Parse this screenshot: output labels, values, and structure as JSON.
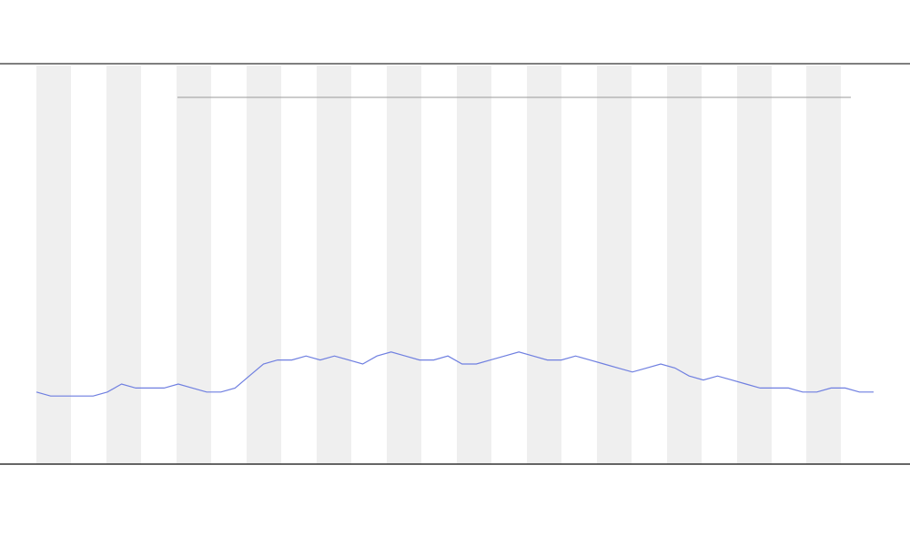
{
  "chart_data": {
    "type": "line",
    "series": [
      {
        "color": "#6f7fe0",
        "values": [
          18,
          17,
          17,
          17,
          17,
          18,
          20,
          19,
          19,
          19,
          20,
          19,
          18,
          18,
          19,
          22,
          25,
          26,
          26,
          27,
          26,
          27,
          26,
          25,
          27,
          28,
          27,
          26,
          26,
          27,
          25,
          25,
          26,
          27,
          28,
          27,
          26,
          26,
          27,
          26,
          25,
          24,
          23,
          24,
          25,
          24,
          22,
          21,
          22,
          21,
          20,
          19,
          19,
          19,
          18,
          18,
          19,
          19,
          18,
          18
        ]
      }
    ],
    "ylim": [
      0,
      100
    ]
  }
}
